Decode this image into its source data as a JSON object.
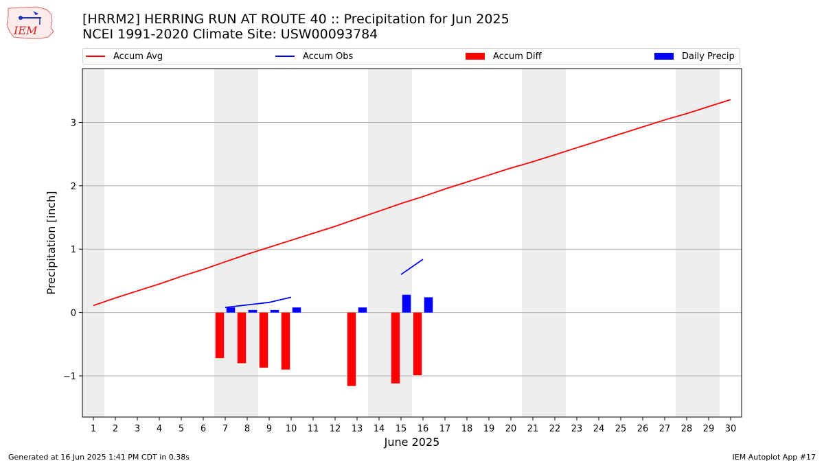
{
  "logo": {
    "text": "IEM"
  },
  "title": {
    "line1": "[HRRM2] HERRING RUN AT ROUTE 40 :: Precipitation for Jun 2025",
    "line2": "NCEI 1991-2020 Climate Site: USW00093784"
  },
  "legend": [
    {
      "key": "avg",
      "label": "Accum Avg",
      "kind": "line",
      "color": "#ff0000"
    },
    {
      "key": "obs",
      "label": "Accum Obs",
      "kind": "line",
      "color": "#0000ff"
    },
    {
      "key": "diff",
      "label": "Accum Diff",
      "kind": "bar",
      "color": "#ff0000"
    },
    {
      "key": "daily",
      "label": "Daily Precip",
      "kind": "bar",
      "color": "#0000ff"
    }
  ],
  "footer": {
    "left": "Generated at 16 Jun 2025 1:41 PM CDT in 0.38s",
    "right": "IEM Autoplot App #17"
  },
  "chart_data": {
    "type": "bar",
    "xlabel": "June 2025",
    "ylabel": "Precipitation [inch]",
    "xlim": [
      0.5,
      30.5
    ],
    "ylim": [
      -1.65,
      3.85
    ],
    "yticks": [
      -1,
      0,
      1,
      2,
      3
    ],
    "ytick_labels": [
      "−1",
      "0",
      "1",
      "2",
      "3"
    ],
    "xticks": [
      1,
      2,
      3,
      4,
      5,
      6,
      7,
      8,
      9,
      10,
      11,
      12,
      13,
      14,
      15,
      16,
      17,
      18,
      19,
      20,
      21,
      22,
      23,
      24,
      25,
      26,
      27,
      28,
      29,
      30
    ],
    "weekend_shading": [
      [
        0.5,
        1.5
      ],
      [
        6.5,
        8.5
      ],
      [
        13.5,
        15.5
      ],
      [
        20.5,
        22.5
      ],
      [
        27.5,
        29.5
      ]
    ],
    "grid": "y",
    "series": [
      {
        "name": "Accum Avg",
        "kind": "line",
        "color": "#ff0000",
        "x": [
          1,
          2,
          3,
          4,
          5,
          6,
          7,
          8,
          9,
          10,
          11,
          12,
          13,
          14,
          15,
          16,
          17,
          18,
          19,
          20,
          21,
          22,
          23,
          24,
          25,
          26,
          27,
          28,
          29,
          30
        ],
        "values": [
          0.11,
          0.23,
          0.34,
          0.45,
          0.57,
          0.68,
          0.8,
          0.92,
          1.03,
          1.14,
          1.25,
          1.36,
          1.48,
          1.6,
          1.72,
          1.83,
          1.95,
          2.06,
          2.17,
          2.28,
          2.38,
          2.49,
          2.6,
          2.71,
          2.82,
          2.93,
          3.04,
          3.14,
          3.25,
          3.36
        ]
      },
      {
        "name": "Accum Obs",
        "kind": "line",
        "color": "#0000ff",
        "segments": [
          {
            "x": [
              7,
              8,
              9,
              10
            ],
            "values": [
              0.08,
              0.12,
              0.16,
              0.24
            ]
          },
          {
            "x": [
              15,
              16
            ],
            "values": [
              0.6,
              0.84
            ]
          }
        ]
      },
      {
        "name": "Accum Diff",
        "kind": "bar",
        "color": "#ff0000",
        "x": [
          7,
          8,
          9,
          10,
          13,
          15,
          16
        ],
        "values": [
          -0.72,
          -0.8,
          -0.87,
          -0.9,
          -1.16,
          -1.12,
          -0.99
        ]
      },
      {
        "name": "Daily Precip",
        "kind": "bar",
        "color": "#0000ff",
        "x": [
          7,
          8,
          9,
          10,
          13,
          15,
          16
        ],
        "values": [
          0.08,
          0.04,
          0.04,
          0.08,
          0.08,
          0.28,
          0.24
        ]
      }
    ]
  }
}
